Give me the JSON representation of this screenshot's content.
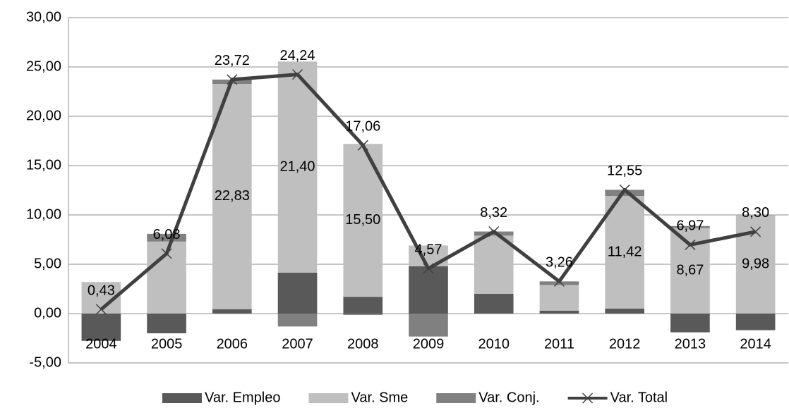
{
  "chart_data": {
    "type": "bar",
    "stacked": true,
    "categories": [
      "2004",
      "2005",
      "2006",
      "2007",
      "2008",
      "2009",
      "2010",
      "2011",
      "2012",
      "2013",
      "2014"
    ],
    "series": [
      {
        "name": "Var. Empleo",
        "color": "#595959",
        "values": [
          -2.77,
          -2.0,
          0.45,
          4.15,
          1.7,
          4.8,
          2.0,
          0.3,
          0.5,
          -1.9,
          -1.68
        ]
      },
      {
        "name": "Var. Sme",
        "color": "#bfbfbf",
        "values": [
          3.2,
          7.3,
          22.83,
          21.4,
          15.5,
          2.1,
          5.9,
          2.6,
          11.42,
          8.67,
          9.98
        ],
        "value_labels": [
          null,
          null,
          "22,83",
          "21,40",
          "15,50",
          null,
          null,
          null,
          "11,42",
          "8,67",
          "9,98"
        ]
      },
      {
        "name": "Var. Conj.",
        "color": "#808080",
        "values": [
          0,
          0.78,
          0.44,
          -1.31,
          -0.14,
          -2.33,
          0.42,
          0.36,
          0.63,
          0.2,
          0
        ]
      },
      {
        "name": "Var. Total",
        "color": "#404040",
        "type": "line",
        "values": [
          0.43,
          6.08,
          23.72,
          24.24,
          17.06,
          4.57,
          8.32,
          3.26,
          12.55,
          6.97,
          8.3
        ],
        "value_labels": [
          "0,43",
          "6,08",
          "23,72",
          "24,24",
          "17,06",
          "4,57",
          "8,32",
          "3,26",
          "12,55",
          "6,97",
          "8,30"
        ]
      }
    ],
    "ylim": [
      -5,
      30
    ],
    "yticks": [
      {
        "value": -5,
        "label": "-5,00"
      },
      {
        "value": 0,
        "label": "0,00"
      },
      {
        "value": 5,
        "label": "5,00"
      },
      {
        "value": 10,
        "label": "10,00"
      },
      {
        "value": 15,
        "label": "15,00"
      },
      {
        "value": 20,
        "label": "20,00"
      },
      {
        "value": 25,
        "label": "25,00"
      },
      {
        "value": 30,
        "label": "30,00"
      }
    ],
    "grid": true,
    "legend": "bottom"
  }
}
